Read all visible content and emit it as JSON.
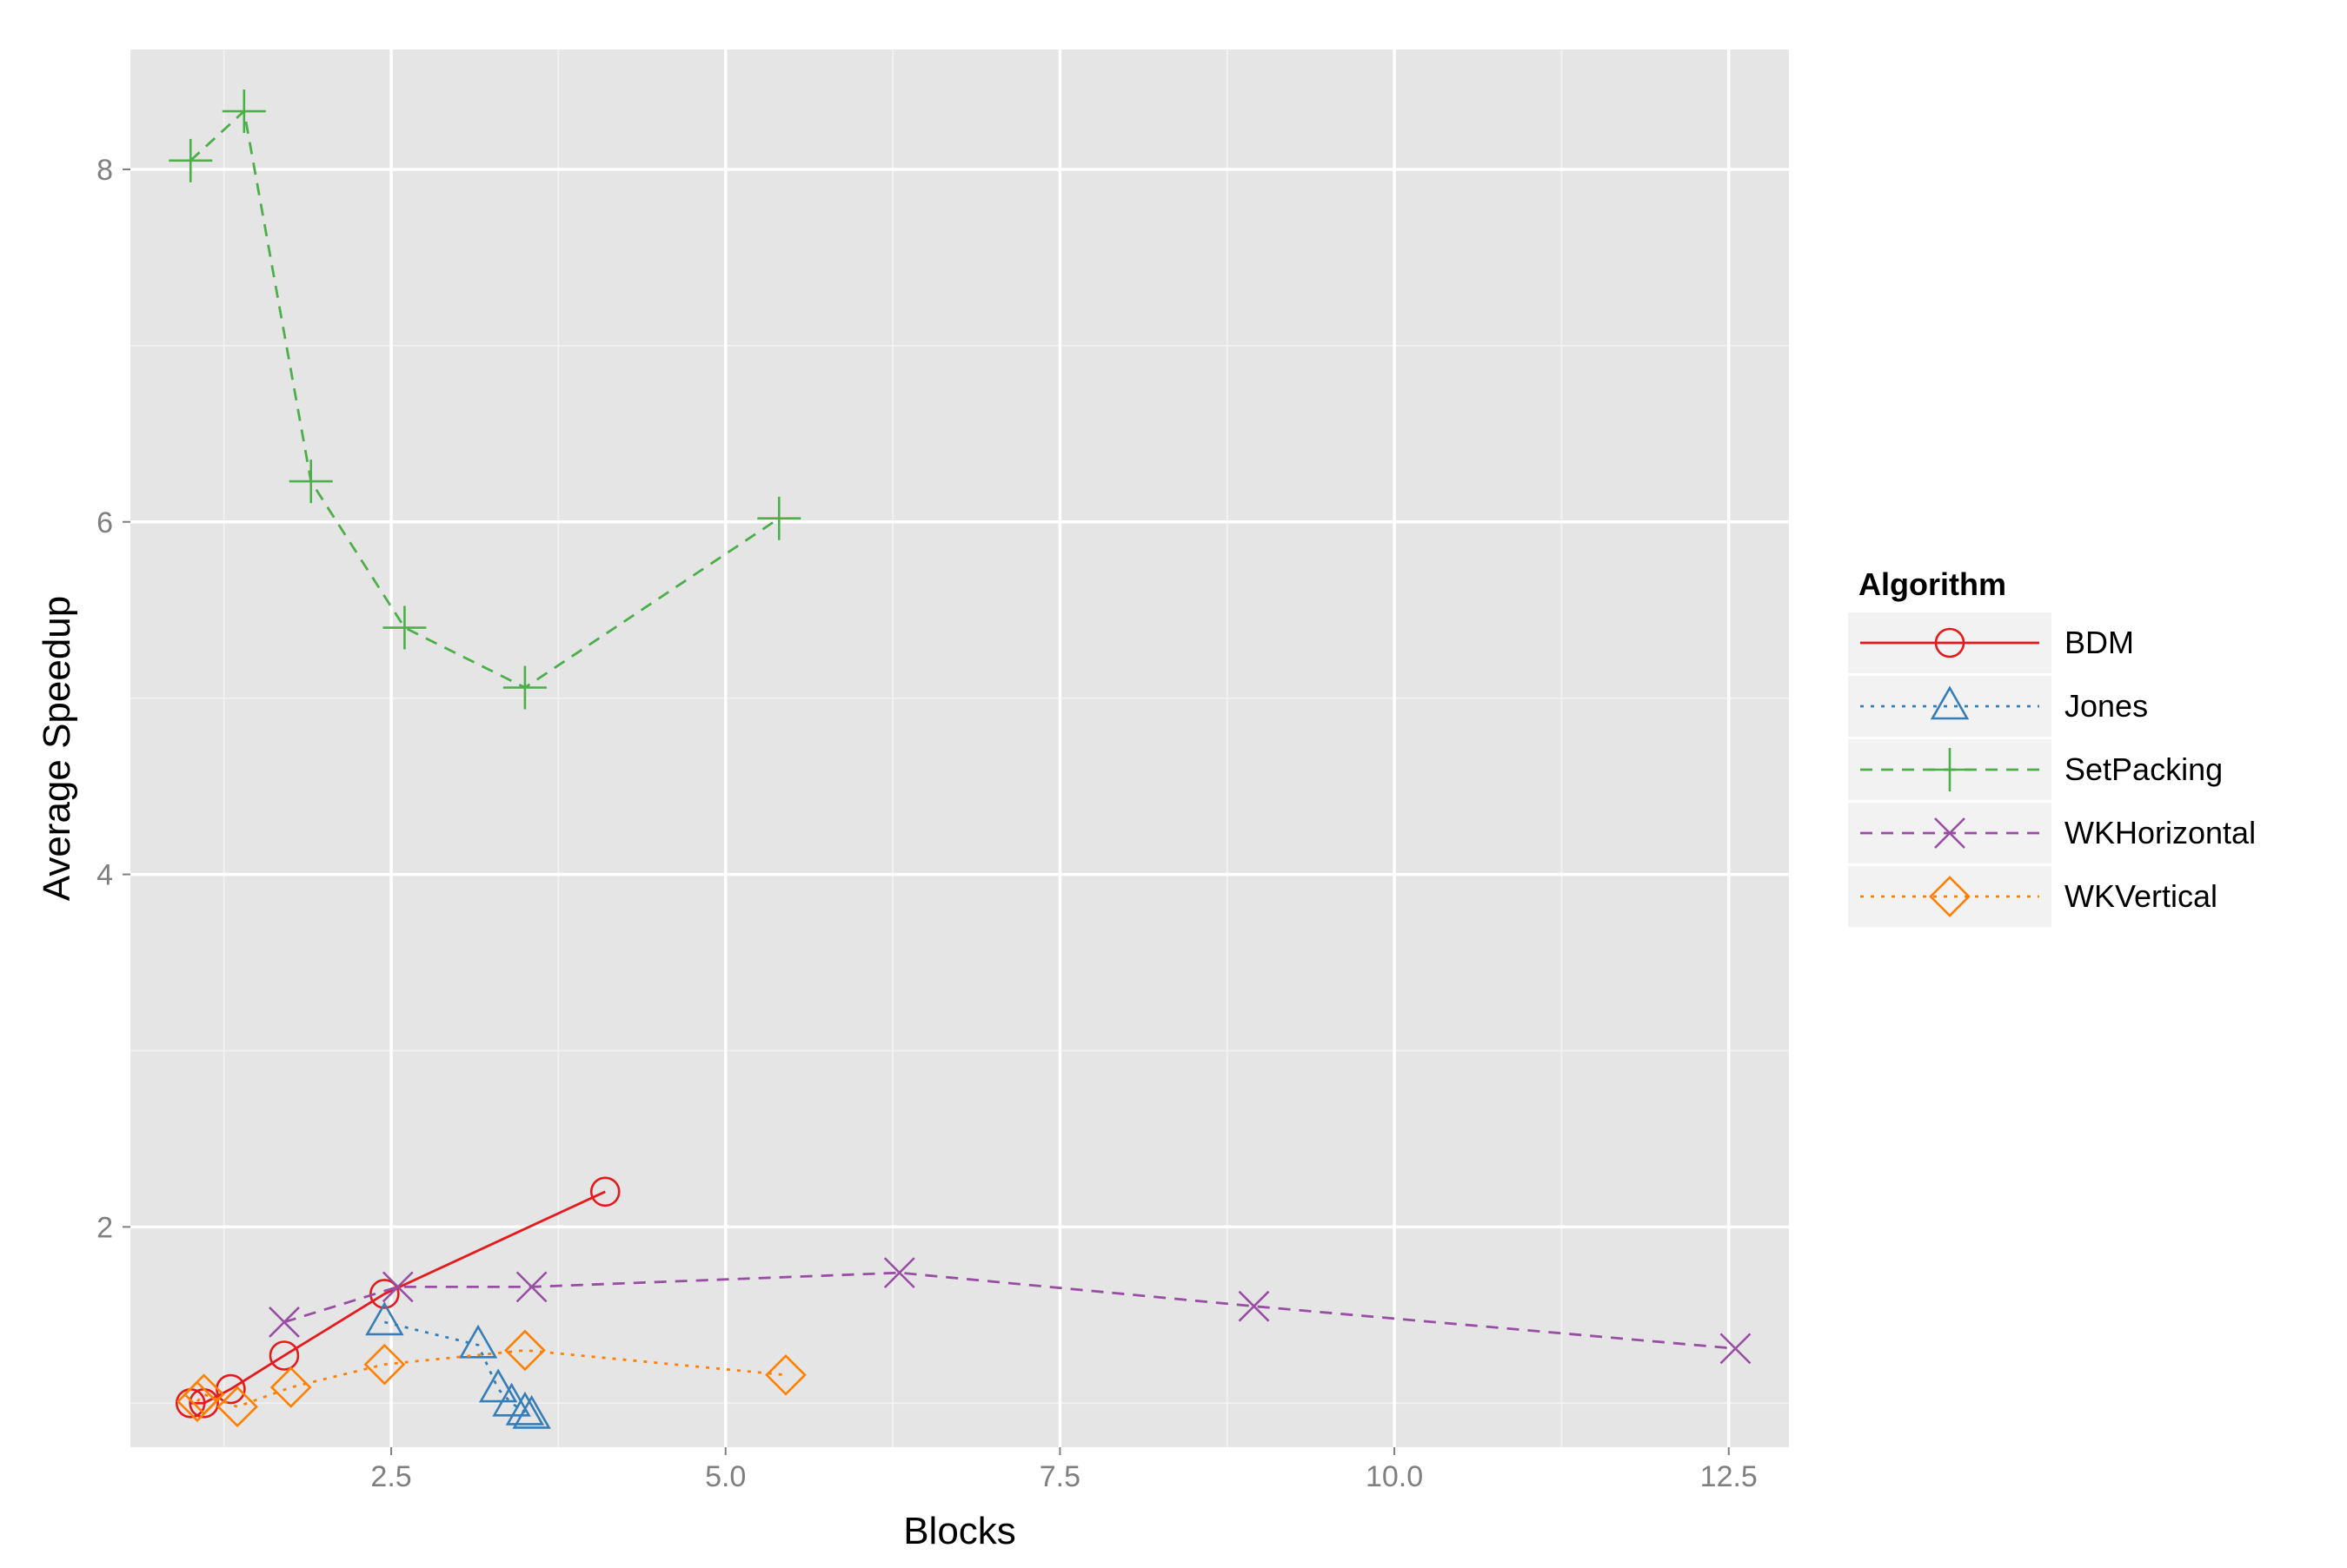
{
  "chart_data": {
    "type": "line",
    "xlabel": "Blocks",
    "ylabel": "Average Speedup",
    "xlim": [
      0.55,
      12.95
    ],
    "ylim": [
      0.75,
      8.68
    ],
    "x_ticks": [
      2.5,
      5.0,
      7.5,
      10.0,
      12.5
    ],
    "x_tick_labels": [
      "2.5",
      "5.0",
      "7.5",
      "10.0",
      "12.5"
    ],
    "y_ticks": [
      2,
      4,
      6,
      8
    ],
    "y_tick_labels": [
      "2",
      "4",
      "6",
      "8"
    ],
    "grid": true,
    "legend_position": "right",
    "legend_title": "Algorithm",
    "series": [
      {
        "name": "BDM",
        "color": "#e41a1c",
        "line": "solid",
        "marker": "circle",
        "points": [
          [
            1.0,
            1.0
          ],
          [
            1.1,
            1.0
          ],
          [
            1.3,
            1.08
          ],
          [
            1.7,
            1.27
          ],
          [
            2.45,
            1.62
          ],
          [
            4.1,
            2.2
          ]
        ]
      },
      {
        "name": "Jones",
        "color": "#377eb8",
        "line": "dotted",
        "marker": "triangle",
        "points": [
          [
            2.45,
            1.46
          ],
          [
            3.15,
            1.33
          ],
          [
            3.3,
            1.08
          ],
          [
            3.4,
            1.0
          ],
          [
            3.5,
            0.95
          ],
          [
            3.55,
            0.93
          ]
        ]
      },
      {
        "name": "SetPacking",
        "color": "#4daf4a",
        "line": "dashed",
        "marker": "plus",
        "points": [
          [
            1.0,
            8.05
          ],
          [
            1.4,
            8.33
          ],
          [
            1.9,
            6.23
          ],
          [
            2.6,
            5.4
          ],
          [
            3.5,
            5.06
          ],
          [
            5.4,
            6.02
          ]
        ]
      },
      {
        "name": "WKHorizontal",
        "color": "#984ea3",
        "line": "dashed",
        "marker": "x",
        "points": [
          [
            1.7,
            1.46
          ],
          [
            2.55,
            1.66
          ],
          [
            3.55,
            1.66
          ],
          [
            6.3,
            1.74
          ],
          [
            8.95,
            1.55
          ],
          [
            12.55,
            1.31
          ]
        ]
      },
      {
        "name": "WKVertical",
        "color": "#ff7f00",
        "line": "dotted",
        "marker": "diamond",
        "points": [
          [
            1.05,
            1.01
          ],
          [
            1.1,
            1.05
          ],
          [
            1.35,
            0.98
          ],
          [
            1.75,
            1.09
          ],
          [
            2.45,
            1.22
          ],
          [
            3.5,
            1.3
          ],
          [
            5.45,
            1.16
          ]
        ]
      }
    ]
  }
}
